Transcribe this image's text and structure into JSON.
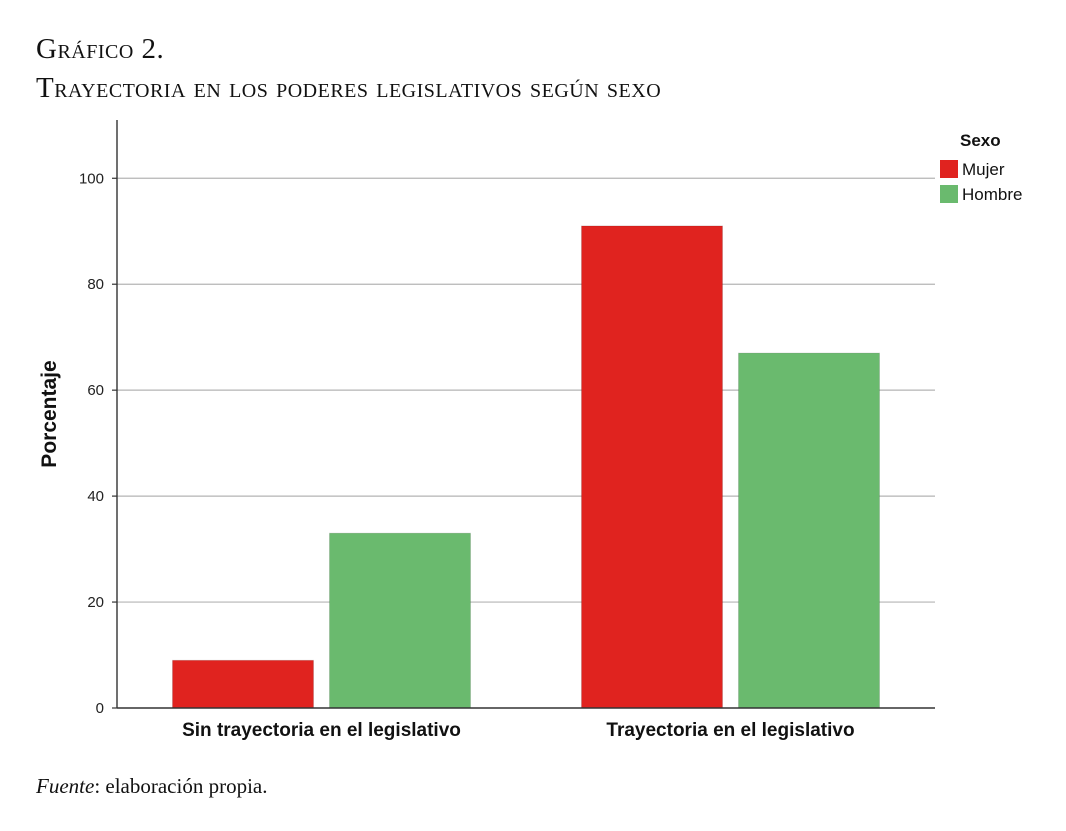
{
  "figure": {
    "label": "Gráfico 2.",
    "title": "Trayectoria en los poderes legislativos según sexo",
    "source_label": "Fuente",
    "source_text": ": elaboración propia."
  },
  "chart_data": {
    "type": "bar",
    "title": "Trayectoria en los poderes legislativos según sexo",
    "xlabel": "",
    "ylabel": "Porcentaje",
    "categories": [
      "Sin trayectoria en el legislativo",
      "Trayectoria en el legislativo"
    ],
    "series": [
      {
        "name": "Mujer",
        "color": "#e0231f",
        "values": [
          9,
          91
        ]
      },
      {
        "name": "Hombre",
        "color": "#6aba6e",
        "values": [
          33,
          67
        ]
      }
    ],
    "ylim": [
      0,
      111
    ],
    "yticks": [
      0,
      20,
      40,
      60,
      80,
      100
    ],
    "grid": true,
    "legend": {
      "title": "Sexo",
      "position": "top-right"
    }
  }
}
